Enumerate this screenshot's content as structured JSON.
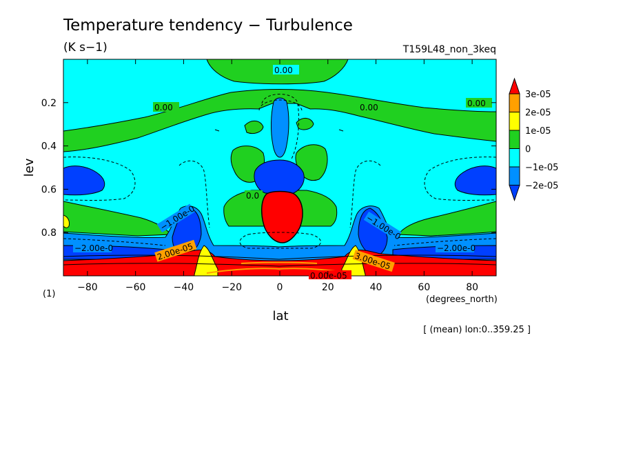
{
  "chart_data": {
    "type": "contour",
    "title": "Temperature tendency − Turbulence",
    "units": "(K s−1)",
    "run_label": "T159L48_non_3keq",
    "xlabel": "lat",
    "x_units": "(degrees_north)",
    "ylabel": "lev",
    "y_units": "(1)",
    "subset_note": "[ (mean) lon:0..359.25 ]",
    "xlim": [
      -90,
      90
    ],
    "ylim": [
      1.0,
      0.0
    ],
    "x_ticks": [
      -80,
      -60,
      -40,
      -20,
      0,
      20,
      40,
      60,
      80
    ],
    "y_ticks": [
      0.2,
      0.4,
      0.6,
      0.8
    ],
    "colorbar": {
      "levels": [
        "3e-05",
        "2e-05",
        "1e-05",
        "0",
        "−1e-05",
        "−2e-05"
      ],
      "colors": [
        "#ff0000",
        "#ffa000",
        "#ffff00",
        "#20d020",
        "#00ffff",
        "#0090ff",
        "#0040ff"
      ]
    },
    "contour_labels": [
      "0.00",
      "0.00",
      "0.00",
      "0.00",
      "0.0",
      "−1.00e-0",
      "−1.00e-0",
      "−2.00e-0",
      "−2.00e-0",
      "3.00e-05",
      "2.00e-05",
      "0.00e-05"
    ]
  }
}
